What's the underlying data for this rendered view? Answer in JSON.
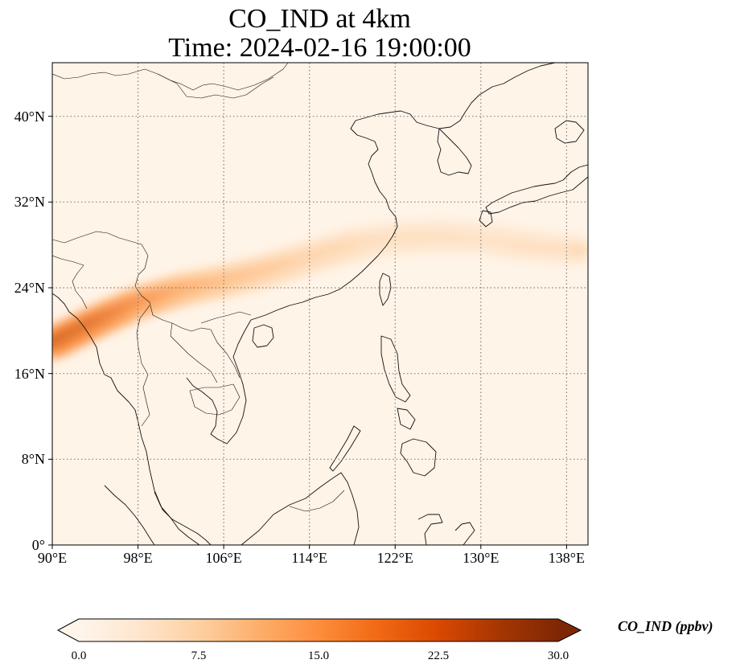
{
  "title": {
    "line1": "CO_IND at 4km",
    "line2": "Time: 2024-02-16 19:00:00"
  },
  "map": {
    "projection": "PlateCarree",
    "lon_range": [
      90,
      140
    ],
    "lat_range": [
      0,
      45
    ],
    "gridlines": "dotted",
    "lon_ticks": [
      {
        "value": 90,
        "label": "90°E"
      },
      {
        "value": 98,
        "label": "98°E"
      },
      {
        "value": 106,
        "label": "106°E"
      },
      {
        "value": 114,
        "label": "114°E"
      },
      {
        "value": 122,
        "label": "122°E"
      },
      {
        "value": 130,
        "label": "130°E"
      },
      {
        "value": 138,
        "label": "138°E"
      }
    ],
    "lat_ticks": [
      {
        "value": 0,
        "label": "0°"
      },
      {
        "value": 8,
        "label": "8°N"
      },
      {
        "value": 16,
        "label": "16°N"
      },
      {
        "value": 24,
        "label": "24°N"
      },
      {
        "value": 32,
        "label": "32°N"
      },
      {
        "value": 40,
        "label": "40°N"
      }
    ],
    "plume_axis": [
      [
        90,
        18.8
      ],
      [
        94,
        20.8
      ],
      [
        98,
        22.6
      ],
      [
        102,
        23.8
      ],
      [
        106,
        24.6
      ],
      [
        110,
        25.6
      ],
      [
        114,
        26.8
      ],
      [
        118,
        28.0
      ],
      [
        122,
        28.6
      ],
      [
        126,
        28.8
      ],
      [
        130,
        28.6
      ],
      [
        134,
        28.0
      ],
      [
        140,
        27.4
      ]
    ],
    "plume_peak": [
      27,
      25,
      20,
      16,
      13,
      11,
      9,
      8,
      6.5,
      6.5,
      6,
      6,
      6
    ]
  },
  "colorbar": {
    "label": "CO_IND (ppbv)",
    "min": 0,
    "max": 30,
    "ticks": [
      "0.0",
      "7.5",
      "15.0",
      "22.5",
      "30.0"
    ],
    "cmap": [
      "#fff5eb",
      "#fee6ce",
      "#fdd0a2",
      "#fdae6b",
      "#fd8d3c",
      "#f16913",
      "#d94801",
      "#a63603",
      "#7f2704"
    ],
    "extend": "both"
  }
}
